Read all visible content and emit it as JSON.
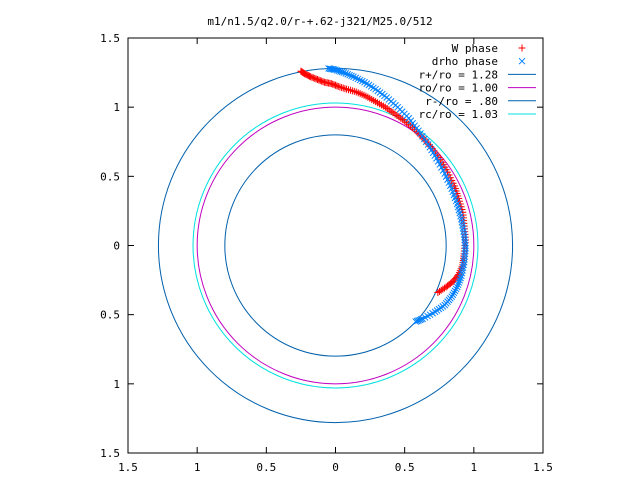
{
  "chart_data": {
    "type": "scatter",
    "title": "m1/n1.5/q2.0/r-+.62-j321/M25.0/512",
    "xlabel": "",
    "ylabel": "",
    "xlim": [
      -1.5,
      1.5
    ],
    "ylim": [
      -1.5,
      1.5
    ],
    "x_ticks": [
      {
        "value": -1.5,
        "label": "1.5"
      },
      {
        "value": -1.0,
        "label": "1"
      },
      {
        "value": -0.5,
        "label": "0.5"
      },
      {
        "value": 0.0,
        "label": "0"
      },
      {
        "value": 0.5,
        "label": "0.5"
      },
      {
        "value": 1.0,
        "label": "1"
      },
      {
        "value": 1.5,
        "label": "1.5"
      }
    ],
    "y_ticks": [
      {
        "value": -1.5,
        "label": "1.5"
      },
      {
        "value": -1.0,
        "label": "1"
      },
      {
        "value": -0.5,
        "label": "0.5"
      },
      {
        "value": 0.0,
        "label": "0"
      },
      {
        "value": 0.5,
        "label": "0.5"
      },
      {
        "value": 1.0,
        "label": "1"
      },
      {
        "value": 1.5,
        "label": "1.5"
      }
    ],
    "grid": false,
    "legend_position": "top-right",
    "series": [
      {
        "name": "W phase",
        "marker": "plus",
        "color": "#ff0000",
        "points": [
          [
            -0.25,
            1.26
          ],
          [
            -0.22,
            1.24
          ],
          [
            -0.18,
            1.22
          ],
          [
            -0.13,
            1.2
          ],
          [
            -0.08,
            1.18
          ],
          [
            -0.03,
            1.17
          ],
          [
            0.02,
            1.15
          ],
          [
            0.08,
            1.13
          ],
          [
            0.15,
            1.11
          ],
          [
            0.22,
            1.08
          ],
          [
            0.29,
            1.04
          ],
          [
            0.36,
            1.0
          ],
          [
            0.43,
            0.95
          ],
          [
            0.5,
            0.9
          ],
          [
            0.57,
            0.84
          ],
          [
            0.64,
            0.77
          ],
          [
            0.7,
            0.7
          ],
          [
            0.76,
            0.62
          ],
          [
            0.81,
            0.53
          ],
          [
            0.86,
            0.43
          ],
          [
            0.89,
            0.34
          ],
          [
            0.92,
            0.24
          ],
          [
            0.93,
            0.14
          ],
          [
            0.94,
            0.04
          ],
          [
            0.93,
            -0.06
          ],
          [
            0.92,
            -0.14
          ],
          [
            0.89,
            -0.21
          ],
          [
            0.85,
            -0.26
          ],
          [
            0.8,
            -0.3
          ],
          [
            0.74,
            -0.34
          ]
        ]
      },
      {
        "name": "drho phase",
        "marker": "cross",
        "color": "#0080ff",
        "points": [
          [
            -0.05,
            1.28
          ],
          [
            0.0,
            1.27
          ],
          [
            0.06,
            1.25
          ],
          [
            0.13,
            1.22
          ],
          [
            0.21,
            1.18
          ],
          [
            0.29,
            1.13
          ],
          [
            0.37,
            1.07
          ],
          [
            0.45,
            1.0
          ],
          [
            0.53,
            0.92
          ],
          [
            0.6,
            0.83
          ],
          [
            0.67,
            0.73
          ],
          [
            0.73,
            0.63
          ],
          [
            0.79,
            0.52
          ],
          [
            0.84,
            0.41
          ],
          [
            0.88,
            0.3
          ],
          [
            0.91,
            0.19
          ],
          [
            0.93,
            0.08
          ],
          [
            0.94,
            -0.02
          ],
          [
            0.93,
            -0.12
          ],
          [
            0.91,
            -0.22
          ],
          [
            0.88,
            -0.3
          ],
          [
            0.84,
            -0.37
          ],
          [
            0.79,
            -0.43
          ],
          [
            0.72,
            -0.48
          ],
          [
            0.63,
            -0.53
          ],
          [
            0.58,
            -0.55
          ]
        ]
      },
      {
        "name": "r+/ro = 1.28",
        "type": "circle",
        "radius": 1.28,
        "color": "#0060ad"
      },
      {
        "name": "ro/ro = 1.00",
        "type": "circle",
        "radius": 1.0,
        "color": "#c000c0"
      },
      {
        "name": "r-/ro = .80",
        "type": "circle",
        "radius": 0.8,
        "color": "#0060ad"
      },
      {
        "name": "rc/ro = 1.03",
        "type": "circle",
        "radius": 1.03,
        "color": "#00e0e0"
      }
    ]
  }
}
